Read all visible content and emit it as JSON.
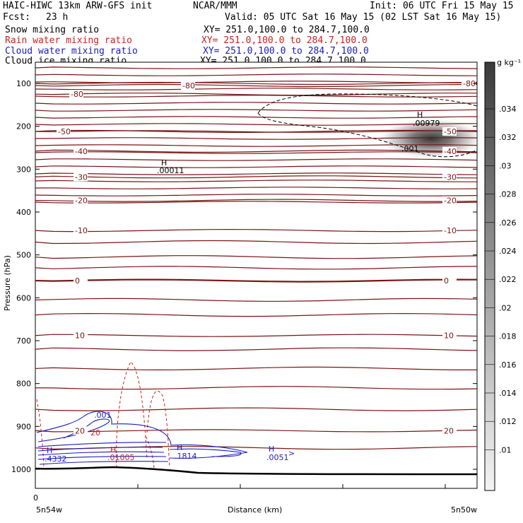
{
  "header": {
    "title_left": "HAIC-HIWC 13km ARW-GFS init",
    "org": "NCAR/MMM",
    "init": "Init: 06 UTC Fri 15 May 15",
    "fcst_label": "Fcst:",
    "fcst_value": "23 h",
    "valid": "Valid: 05 UTC Sat 16 May 15 (02 LST Sat 16 May 15)"
  },
  "legend": [
    {
      "name": "Snow mixing ratio",
      "color": "#000000",
      "xy": "XY= 251.0,100.0 to 284.7,100.0"
    },
    {
      "name": "Rain water mixing ratio",
      "color": "#d42020",
      "xy": "XY= 251.0,100.0 to 284.7,100.0"
    },
    {
      "name": "Cloud water mixing ratio",
      "color": "#1c1cc0",
      "xy": "XY= 251.0,100.0 to 284.7,100.0"
    },
    {
      "name": "Cloud ice mixing ratio",
      "color": "#000000",
      "xy": "XY= 251.0,100.0 to 284.7,100.0"
    }
  ],
  "colorbar": {
    "unit": "g kg⁻¹",
    "labels": [
      ".034",
      ".032",
      ".03",
      ".028",
      ".026",
      ".024",
      ".022",
      ".02",
      ".018",
      ".016",
      ".014",
      ".012",
      ".01"
    ]
  },
  "axes": {
    "ylabel": "Pressure (hPa)",
    "xlabel": "Distance (km)",
    "x_left": "5n54w",
    "x_right": "5n50w",
    "x_zero": "0"
  },
  "chart_data": {
    "type": "contour",
    "ylim": [
      1000,
      50
    ],
    "yticks": [
      100,
      200,
      300,
      400,
      500,
      600,
      700,
      800,
      900,
      1000
    ],
    "temperature_contours_C": [
      {
        "value": -80,
        "pressure": 125,
        "label": "-80",
        "label_side": "left"
      },
      {
        "value": -80,
        "pressure": 105,
        "label": "-80",
        "label_side": "mid"
      },
      {
        "value": -80,
        "pressure": 100,
        "label": "-80",
        "label_side": "right"
      },
      {
        "value": -50,
        "pressure": 212,
        "label": "-50",
        "label_side": "both"
      },
      {
        "value": -40,
        "pressure": 258,
        "label": "-40",
        "label_side": "both"
      },
      {
        "value": -30,
        "pressure": 318,
        "label": "-30",
        "label_side": "both"
      },
      {
        "value": -20,
        "pressure": 373,
        "label": "-20",
        "label_side": "both"
      },
      {
        "value": -10,
        "pressure": 443,
        "label": "-10",
        "label_side": "both"
      },
      {
        "value": 0,
        "pressure": 560,
        "label": "0",
        "label_side": "both"
      },
      {
        "value": 10,
        "pressure": 688,
        "label": "10",
        "label_side": "both"
      },
      {
        "value": 20,
        "pressure": 910,
        "label": "20",
        "label_side": "both"
      }
    ],
    "extrema": [
      {
        "letter": "H",
        "value": ".00979",
        "field": "snow"
      },
      {
        "letter": "H",
        "value": ".00011",
        "field": "snow"
      },
      {
        "letter": "",
        "value": ".001",
        "field": "snow"
      },
      {
        "letter": "H",
        "value": ".4332",
        "field": "cloud water"
      },
      {
        "letter": "H",
        "value": ".01005",
        "field": "rain water"
      },
      {
        "letter": "H",
        "value": ".1814",
        "field": "cloud water"
      },
      {
        "letter": "H",
        "value": ".0051",
        "field": "cloud water"
      },
      {
        "letter": "",
        "value": ".001",
        "field": "cloud water"
      },
      {
        "letter": "",
        "value": "20",
        "field": "rain water"
      }
    ],
    "shading_range": [
      0.01,
      0.034
    ]
  }
}
